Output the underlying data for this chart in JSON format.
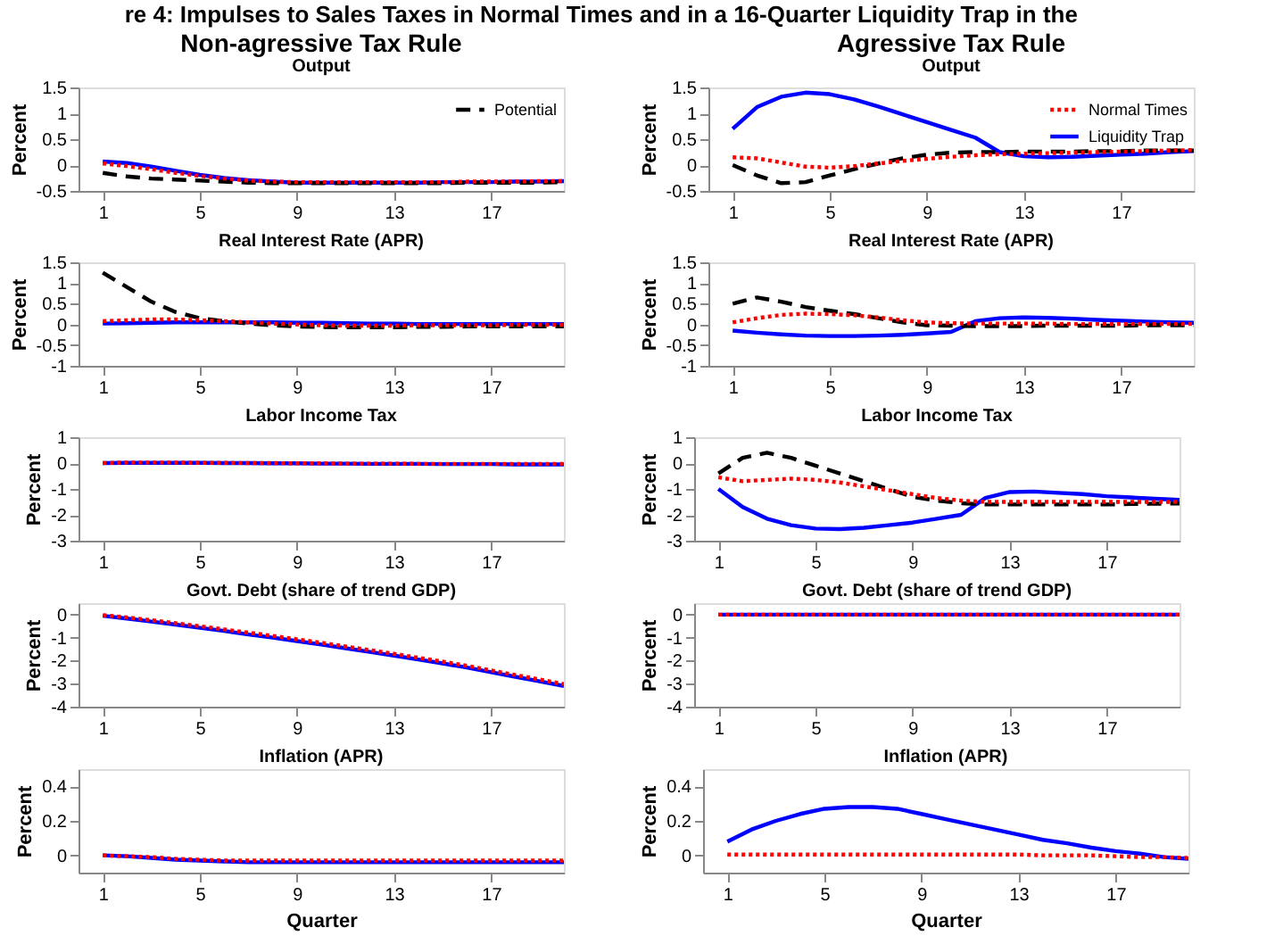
{
  "chart_data": [
    {
      "type": "line",
      "annotations": [
        "re 4: Impulses to Sales Taxes in Normal Times and in a 16-Quarter Liquidity Trap in the"
      ],
      "title": "Non-agressive Tax Rule",
      "subtitle": "Output",
      "ylabel": "Percent",
      "legend": "top right",
      "x": [
        1,
        2,
        3,
        4,
        5,
        6,
        7,
        8,
        9,
        10,
        11,
        12,
        13,
        14,
        15,
        16,
        17,
        18,
        19,
        20
      ],
      "xlim": [
        0,
        20
      ],
      "xticks": [
        1,
        5,
        9,
        13,
        17
      ],
      "ylim": [
        -0.5,
        1.5
      ],
      "yticks": [
        -0.5,
        0,
        0.5,
        1,
        1.5
      ],
      "series": [
        {
          "name": "Potential",
          "color": "#000000",
          "line_style": "dashed",
          "values": [
            -0.15,
            -0.22,
            -0.26,
            -0.28,
            -0.3,
            -0.32,
            -0.34,
            -0.35,
            -0.35,
            -0.35,
            -0.35,
            -0.35,
            -0.35,
            -0.35,
            -0.35,
            -0.34,
            -0.34,
            -0.34,
            -0.34,
            -0.33
          ]
        },
        {
          "color": "#ff0000",
          "line_style": "dotted",
          "values": [
            0.03,
            -0.02,
            -0.08,
            -0.15,
            -0.21,
            -0.26,
            -0.3,
            -0.32,
            -0.33,
            -0.33,
            -0.33,
            -0.33,
            -0.33,
            -0.33,
            -0.33,
            -0.32,
            -0.32,
            -0.32,
            -0.31,
            -0.31
          ]
        },
        {
          "color": "#0000ff",
          "line_style": "solid",
          "values": [
            0.07,
            0.04,
            -0.03,
            -0.11,
            -0.19,
            -0.25,
            -0.29,
            -0.32,
            -0.34,
            -0.34,
            -0.34,
            -0.34,
            -0.34,
            -0.34,
            -0.33,
            -0.33,
            -0.33,
            -0.32,
            -0.32,
            -0.31
          ]
        }
      ]
    },
    {
      "type": "line",
      "title": "Agressive Tax Rule",
      "subtitle": "Output",
      "ylabel": "Percent",
      "legend": "top right",
      "x": [
        1,
        2,
        3,
        4,
        5,
        6,
        7,
        8,
        9,
        10,
        11,
        12,
        13,
        14,
        15,
        16,
        17,
        18,
        19,
        20
      ],
      "xlim": [
        0,
        20
      ],
      "xticks": [
        1,
        5,
        9,
        13,
        17
      ],
      "ylim": [
        -0.5,
        1.5
      ],
      "yticks": [
        -0.5,
        0,
        0.5,
        1,
        1.5
      ],
      "series": [
        {
          "color": "#000000",
          "line_style": "dashed",
          "values": [
            0.0,
            -0.2,
            -0.35,
            -0.33,
            -0.2,
            -0.08,
            0.03,
            0.13,
            0.2,
            0.24,
            0.25,
            0.25,
            0.26,
            0.26,
            0.26,
            0.27,
            0.27,
            0.28,
            0.28,
            0.28
          ]
        },
        {
          "name": "Normal Times",
          "color": "#ff0000",
          "line_style": "dotted",
          "values": [
            0.15,
            0.13,
            0.05,
            -0.03,
            -0.05,
            -0.02,
            0.03,
            0.08,
            0.12,
            0.16,
            0.19,
            0.21,
            0.22,
            0.23,
            0.24,
            0.25,
            0.26,
            0.27,
            0.28,
            0.29
          ]
        },
        {
          "name": "Liquidity Trap",
          "color": "#0000ff",
          "line_style": "solid",
          "values": [
            0.7,
            1.12,
            1.32,
            1.4,
            1.37,
            1.27,
            1.13,
            0.98,
            0.83,
            0.68,
            0.53,
            0.25,
            0.17,
            0.15,
            0.16,
            0.18,
            0.2,
            0.22,
            0.25,
            0.27
          ]
        }
      ]
    },
    {
      "type": "line",
      "title": "Real Interest Rate (APR)",
      "ylabel": "Percent",
      "x": [
        1,
        2,
        3,
        4,
        5,
        6,
        7,
        8,
        9,
        10,
        11,
        12,
        13,
        14,
        15,
        16,
        17,
        18,
        19,
        20
      ],
      "xlim": [
        0,
        20
      ],
      "xticks": [
        1,
        5,
        9,
        13,
        17
      ],
      "ylim": [
        -1,
        1.5
      ],
      "yticks": [
        -1,
        -0.5,
        0,
        0.5,
        1,
        1.5
      ],
      "series": [
        {
          "color": "#000000",
          "line_style": "dashed",
          "values": [
            1.25,
            0.9,
            0.55,
            0.3,
            0.15,
            0.08,
            0.02,
            -0.02,
            -0.05,
            -0.06,
            -0.07,
            -0.07,
            -0.07,
            -0.06,
            -0.06,
            -0.05,
            -0.05,
            -0.05,
            -0.05,
            -0.05
          ]
        },
        {
          "color": "#ff0000",
          "line_style": "dotted",
          "values": [
            0.08,
            0.1,
            0.12,
            0.12,
            0.1,
            0.08,
            0.05,
            0.02,
            0.0,
            -0.02,
            -0.03,
            -0.03,
            -0.03,
            -0.02,
            -0.02,
            -0.02,
            -0.02,
            -0.01,
            -0.01,
            -0.01
          ]
        },
        {
          "color": "#0000ff",
          "line_style": "solid",
          "values": [
            0.02,
            0.03,
            0.04,
            0.05,
            0.05,
            0.05,
            0.05,
            0.05,
            0.04,
            0.04,
            0.03,
            0.02,
            0.02,
            0.01,
            0.01,
            0.01,
            0.01,
            0.01,
            0.01,
            0.01
          ]
        }
      ]
    },
    {
      "type": "line",
      "title": "Real Interest Rate (APR)",
      "ylabel": "Percent",
      "x": [
        1,
        2,
        3,
        4,
        5,
        6,
        7,
        8,
        9,
        10,
        11,
        12,
        13,
        14,
        15,
        16,
        17,
        18,
        19,
        20
      ],
      "xlim": [
        0,
        20
      ],
      "xticks": [
        1,
        5,
        9,
        13,
        17
      ],
      "ylim": [
        -1,
        1.5
      ],
      "yticks": [
        -1,
        -0.5,
        0,
        0.5,
        1,
        1.5
      ],
      "series": [
        {
          "color": "#000000",
          "line_style": "dashed",
          "values": [
            0.5,
            0.65,
            0.55,
            0.42,
            0.33,
            0.25,
            0.15,
            0.05,
            -0.02,
            -0.03,
            -0.04,
            -0.04,
            -0.04,
            -0.03,
            -0.03,
            -0.03,
            -0.03,
            -0.02,
            -0.02,
            -0.02
          ]
        },
        {
          "color": "#ff0000",
          "line_style": "dotted",
          "values": [
            0.05,
            0.15,
            0.23,
            0.26,
            0.25,
            0.22,
            0.17,
            0.1,
            0.05,
            0.03,
            0.02,
            0.02,
            0.02,
            0.02,
            0.01,
            0.01,
            0.01,
            0.01,
            0.01,
            0.01
          ]
        },
        {
          "color": "#0000ff",
          "line_style": "solid",
          "values": [
            -0.15,
            -0.2,
            -0.24,
            -0.27,
            -0.28,
            -0.28,
            -0.27,
            -0.25,
            -0.22,
            -0.18,
            0.08,
            0.15,
            0.17,
            0.16,
            0.14,
            0.11,
            0.09,
            0.07,
            0.05,
            0.04
          ]
        }
      ]
    },
    {
      "type": "line",
      "title": "Labor Income Tax",
      "ylabel": "Percent",
      "x": [
        1,
        2,
        3,
        4,
        5,
        6,
        7,
        8,
        9,
        10,
        11,
        12,
        13,
        14,
        15,
        16,
        17,
        18,
        19,
        20
      ],
      "xlim": [
        0,
        20
      ],
      "xticks": [
        1,
        5,
        9,
        13,
        17
      ],
      "ylim": [
        -3,
        1
      ],
      "yticks": [
        -3,
        -2,
        -1,
        0,
        1
      ],
      "series": [
        {
          "color": "#ff0000",
          "line_style": "dotted",
          "values": [
            0.0,
            0.02,
            0.02,
            0.02,
            0.01,
            0.01,
            0.0,
            0.0,
            -0.01,
            -0.01,
            -0.02,
            -0.02,
            -0.02,
            -0.03,
            -0.03,
            -0.03,
            -0.03,
            -0.03,
            -0.03,
            -0.03
          ]
        },
        {
          "color": "#0000ff",
          "line_style": "solid",
          "values": [
            0.0,
            0.01,
            0.01,
            0.01,
            0.01,
            0.0,
            0.0,
            -0.01,
            -0.01,
            -0.02,
            -0.02,
            -0.03,
            -0.03,
            -0.03,
            -0.04,
            -0.04,
            -0.04,
            -0.05,
            -0.05,
            -0.05
          ]
        }
      ]
    },
    {
      "type": "line",
      "title": "Labor Income Tax",
      "ylabel": "Percent",
      "x": [
        1,
        2,
        3,
        4,
        5,
        6,
        7,
        8,
        9,
        10,
        11,
        12,
        13,
        14,
        15,
        16,
        17,
        18,
        19,
        20
      ],
      "xlim": [
        0,
        20
      ],
      "xticks": [
        1,
        5,
        9,
        13,
        17
      ],
      "ylim": [
        -3,
        1
      ],
      "yticks": [
        -3,
        -2,
        -1,
        0,
        1
      ],
      "series": [
        {
          "color": "#000000",
          "line_style": "dashed",
          "values": [
            -0.4,
            0.2,
            0.4,
            0.2,
            -0.1,
            -0.4,
            -0.7,
            -1.0,
            -1.3,
            -1.45,
            -1.55,
            -1.6,
            -1.6,
            -1.6,
            -1.6,
            -1.6,
            -1.6,
            -1.58,
            -1.57,
            -1.56
          ]
        },
        {
          "color": "#ff0000",
          "line_style": "dotted",
          "values": [
            -0.55,
            -0.7,
            -0.65,
            -0.6,
            -0.65,
            -0.75,
            -0.9,
            -1.05,
            -1.2,
            -1.35,
            -1.45,
            -1.5,
            -1.5,
            -1.5,
            -1.5,
            -1.5,
            -1.5,
            -1.5,
            -1.5,
            -1.5
          ]
        },
        {
          "color": "#0000ff",
          "line_style": "solid",
          "values": [
            -1.0,
            -1.7,
            -2.15,
            -2.4,
            -2.53,
            -2.55,
            -2.5,
            -2.4,
            -2.3,
            -2.15,
            -2.0,
            -1.35,
            -1.12,
            -1.1,
            -1.15,
            -1.2,
            -1.28,
            -1.33,
            -1.38,
            -1.42
          ]
        }
      ]
    },
    {
      "type": "line",
      "title": "Govt. Debt (share of trend GDP)",
      "ylabel": "Percent",
      "x": [
        1,
        2,
        3,
        4,
        5,
        6,
        7,
        8,
        9,
        10,
        11,
        12,
        13,
        14,
        15,
        16,
        17,
        18,
        19,
        20
      ],
      "xlim": [
        0,
        20
      ],
      "xticks": [
        1,
        5,
        9,
        13,
        17
      ],
      "ylim": [
        -4,
        0.5
      ],
      "yticks": [
        -4,
        -3,
        -2,
        -1,
        0
      ],
      "series": [
        {
          "color": "#ff0000",
          "line_style": "dotted",
          "values": [
            -0.02,
            -0.12,
            -0.24,
            -0.37,
            -0.5,
            -0.64,
            -0.78,
            -0.92,
            -1.07,
            -1.22,
            -1.38,
            -1.54,
            -1.7,
            -1.87,
            -2.04,
            -2.22,
            -2.42,
            -2.62,
            -2.82,
            -3.02
          ]
        },
        {
          "color": "#0000ff",
          "line_style": "solid",
          "values": [
            -0.05,
            -0.17,
            -0.3,
            -0.43,
            -0.57,
            -0.71,
            -0.86,
            -1.0,
            -1.15,
            -1.3,
            -1.46,
            -1.62,
            -1.78,
            -1.95,
            -2.12,
            -2.3,
            -2.5,
            -2.7,
            -2.9,
            -3.1
          ]
        }
      ]
    },
    {
      "type": "line",
      "title": "Govt. Debt (share of trend GDP)",
      "ylabel": "Percent",
      "x": [
        1,
        2,
        3,
        4,
        5,
        6,
        7,
        8,
        9,
        10,
        11,
        12,
        13,
        14,
        15,
        16,
        17,
        18,
        19,
        20
      ],
      "xlim": [
        0,
        20
      ],
      "xticks": [
        1,
        5,
        9,
        13,
        17
      ],
      "ylim": [
        -4,
        0.5
      ],
      "yticks": [
        -4,
        -3,
        -2,
        -1,
        0
      ],
      "series": [
        {
          "color": "#ff0000",
          "line_style": "dotted",
          "values": [
            0,
            0,
            0,
            0,
            0,
            0,
            0,
            0,
            0,
            0,
            0,
            0,
            0,
            0,
            0,
            0,
            0,
            0,
            0,
            0
          ]
        },
        {
          "color": "#0000ff",
          "line_style": "solid",
          "values": [
            0,
            0,
            0,
            0,
            0,
            0,
            0,
            0,
            0,
            0,
            0,
            0,
            0,
            0,
            0,
            0,
            0,
            0,
            0,
            0
          ]
        }
      ]
    },
    {
      "type": "line",
      "title": "Inflation (APR)",
      "ylabel": "Percent",
      "xlabel": "Quarter",
      "x": [
        1,
        2,
        3,
        4,
        5,
        6,
        7,
        8,
        9,
        10,
        11,
        12,
        13,
        14,
        15,
        16,
        17,
        18,
        19,
        20
      ],
      "xlim": [
        0,
        20
      ],
      "xticks": [
        1,
        5,
        9,
        13,
        17
      ],
      "ylim": [
        -0.1,
        0.5
      ],
      "yticks": [
        0,
        0.2,
        0.4
      ],
      "series": [
        {
          "color": "#ff0000",
          "line_style": "dotted",
          "values": [
            0.0,
            -0.005,
            -0.01,
            -0.02,
            -0.025,
            -0.03,
            -0.03,
            -0.03,
            -0.03,
            -0.03,
            -0.03,
            -0.03,
            -0.03,
            -0.03,
            -0.03,
            -0.03,
            -0.03,
            -0.03,
            -0.03,
            -0.03
          ]
        },
        {
          "color": "#0000ff",
          "line_style": "solid",
          "values": [
            0.0,
            -0.005,
            -0.015,
            -0.025,
            -0.03,
            -0.035,
            -0.04,
            -0.04,
            -0.04,
            -0.04,
            -0.04,
            -0.04,
            -0.04,
            -0.04,
            -0.04,
            -0.04,
            -0.04,
            -0.04,
            -0.04,
            -0.04
          ]
        }
      ]
    },
    {
      "type": "line",
      "title": "Inflation (APR)",
      "ylabel": "Percent",
      "xlabel": "Quarter",
      "x": [
        1,
        2,
        3,
        4,
        5,
        6,
        7,
        8,
        9,
        10,
        11,
        12,
        13,
        14,
        15,
        16,
        17,
        18,
        19,
        20
      ],
      "xlim": [
        0,
        20
      ],
      "xticks": [
        1,
        5,
        9,
        13,
        17
      ],
      "ylim": [
        -0.1,
        0.5
      ],
      "yticks": [
        0,
        0.2,
        0.4
      ],
      "series": [
        {
          "color": "#ff0000",
          "line_style": "dotted",
          "values": [
            0.005,
            0.005,
            0.005,
            0.005,
            0.005,
            0.005,
            0.005,
            0.005,
            0.005,
            0.005,
            0.005,
            0.005,
            0.005,
            0.0,
            0.0,
            0.0,
            -0.005,
            -0.01,
            -0.01,
            -0.015
          ]
        },
        {
          "color": "#0000ff",
          "line_style": "solid",
          "values": [
            0.08,
            0.15,
            0.2,
            0.24,
            0.27,
            0.28,
            0.28,
            0.27,
            0.24,
            0.21,
            0.18,
            0.15,
            0.12,
            0.09,
            0.07,
            0.045,
            0.025,
            0.01,
            -0.01,
            -0.02
          ]
        }
      ]
    }
  ]
}
